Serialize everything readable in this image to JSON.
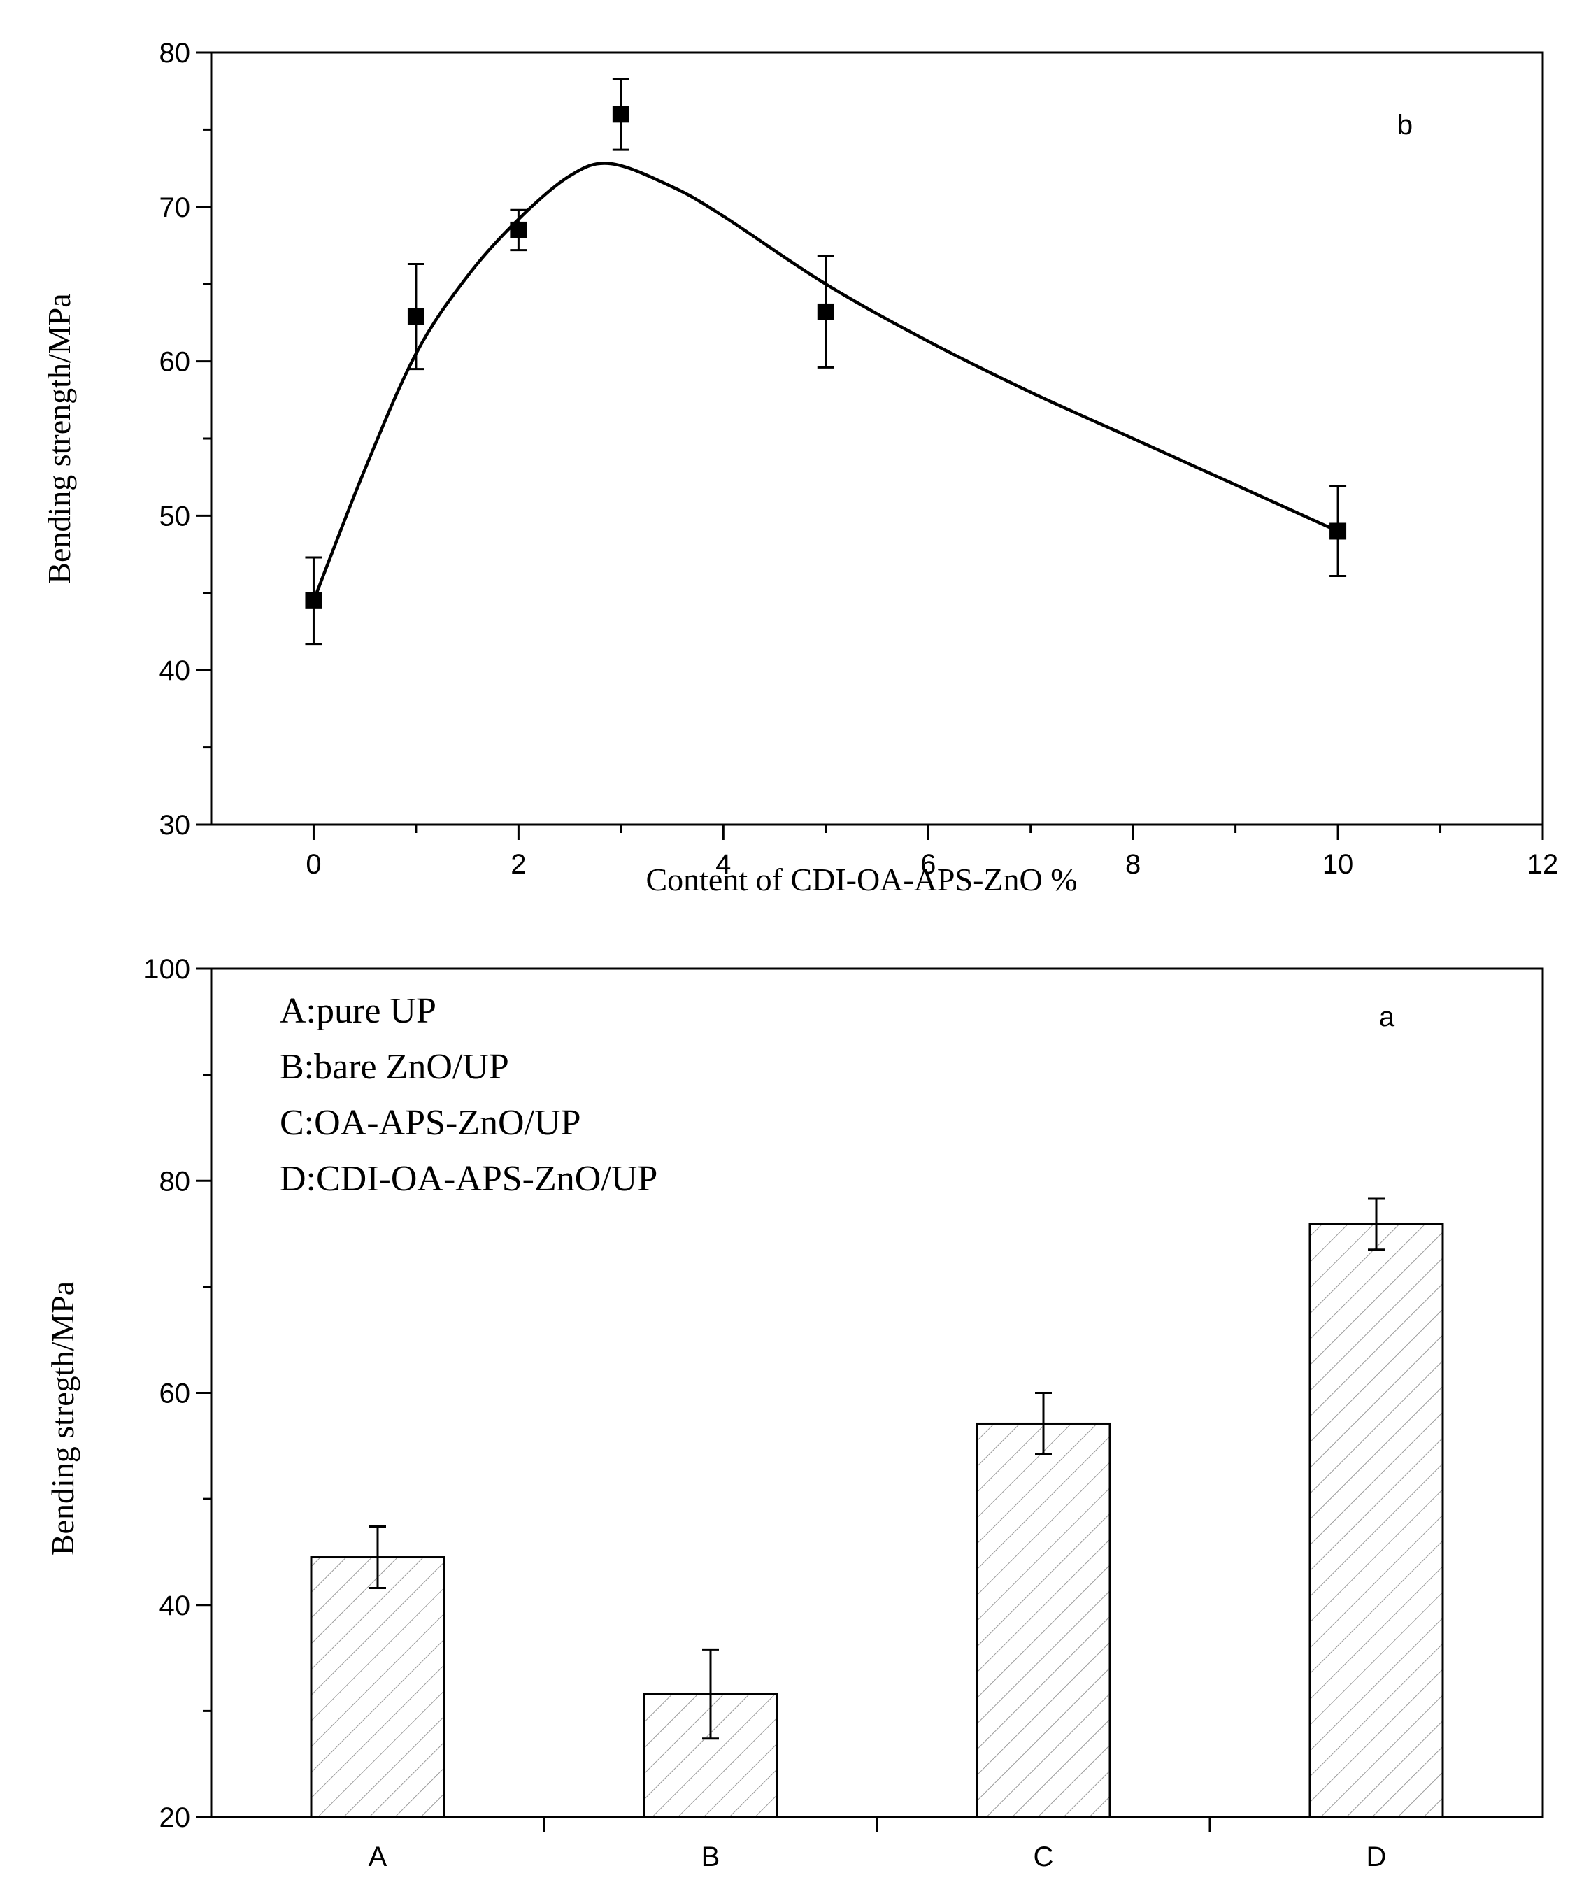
{
  "chart_data": [
    {
      "id": "b",
      "type": "scatter",
      "panel_label": "b",
      "xlabel": "Content of CDI-OA-APS-ZnO %",
      "ylabel": "Bending strength/MPa",
      "xlim": [
        -1,
        12
      ],
      "ylim": [
        30,
        80
      ],
      "xticks": [
        "0",
        "2",
        "4",
        "6",
        "8",
        "10",
        "12"
      ],
      "yticks": [
        "30",
        "40",
        "50",
        "60",
        "70",
        "80"
      ],
      "points": [
        {
          "x": 0,
          "y": 44.5,
          "err": 2.8
        },
        {
          "x": 1,
          "y": 62.9,
          "err": 3.4
        },
        {
          "x": 2,
          "y": 68.5,
          "err": 1.3
        },
        {
          "x": 3,
          "y": 76.0,
          "err": 2.3
        },
        {
          "x": 5,
          "y": 63.2,
          "err": 3.6
        },
        {
          "x": 10,
          "y": 49.0,
          "err": 2.9
        }
      ],
      "fit_curve": {
        "x": [
          0,
          0.5,
          1,
          1.5,
          2,
          2.5,
          2.9,
          3.5,
          4,
          5,
          6,
          7,
          8,
          9,
          10
        ],
        "y": [
          44.5,
          53.0,
          60.5,
          65.5,
          69.2,
          72.0,
          72.8,
          71.3,
          69.4,
          65.0,
          61.3,
          58.0,
          55.0,
          52.0,
          49.0
        ]
      }
    },
    {
      "id": "a",
      "type": "bar",
      "panel_label": "a",
      "xlabel": "",
      "ylabel": "Bending stregth/MPa",
      "ylim": [
        20,
        100
      ],
      "yticks": [
        "20",
        "40",
        "60",
        "80",
        "100"
      ],
      "categories": [
        "A",
        "B",
        "C",
        "D"
      ],
      "values": [
        44.5,
        31.6,
        57.1,
        75.9
      ],
      "errors": [
        2.9,
        4.2,
        2.9,
        2.4
      ],
      "legend": [
        "A:pure UP",
        "B:bare ZnO/UP",
        "C:OA-APS-ZnO/UP",
        "D:CDI-OA-APS-ZnO/UP"
      ]
    }
  ]
}
